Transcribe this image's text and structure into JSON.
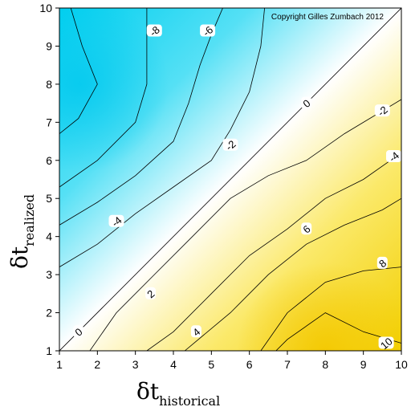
{
  "chart_data": {
    "type": "contour",
    "copyright": "Copyright Gilles Zumbach 2012",
    "x_axis": {
      "symbol": "δt",
      "subscript": "historical",
      "range": [
        1,
        10
      ],
      "ticks": [
        "1",
        "2",
        "3",
        "4",
        "5",
        "6",
        "7",
        "8",
        "9",
        "10"
      ]
    },
    "y_axis": {
      "symbol": "δt",
      "subscript": "realized",
      "range": [
        1,
        10
      ],
      "ticks": [
        "1",
        "2",
        "3",
        "4",
        "5",
        "6",
        "7",
        "8",
        "9",
        "10"
      ]
    },
    "colors": {
      "low": "#00d0f0",
      "mid": "#ffffff",
      "high": "#f5d800"
    },
    "contours": [
      {
        "label": "-8",
        "points": [
          [
            1,
            6.7
          ],
          [
            1.5,
            7.1
          ],
          [
            2,
            8
          ],
          [
            1.6,
            9
          ],
          [
            1.3,
            10
          ]
        ]
      },
      {
        "label": "-6",
        "points": [
          [
            1,
            5.3
          ],
          [
            2,
            6
          ],
          [
            3,
            7
          ],
          [
            3.3,
            8
          ],
          [
            3.3,
            9
          ],
          [
            3.3,
            10
          ]
        ]
      },
      {
        "label": "-4",
        "points": [
          [
            1,
            4.3
          ],
          [
            2,
            4.9
          ],
          [
            3,
            5.6
          ],
          [
            4,
            6.5
          ],
          [
            4.4,
            7.5
          ],
          [
            4.7,
            8.5
          ],
          [
            5,
            9.3
          ],
          [
            5.3,
            10
          ]
        ]
      },
      {
        "label": "-2",
        "points": [
          [
            1,
            3.2
          ],
          [
            2,
            3.8
          ],
          [
            3,
            4.6
          ],
          [
            4,
            5.3
          ],
          [
            5,
            6
          ],
          [
            5.5,
            6.8
          ],
          [
            6,
            7.8
          ],
          [
            6.3,
            9
          ],
          [
            6.4,
            10
          ]
        ]
      },
      {
        "label": "0",
        "points": [
          [
            1,
            1
          ],
          [
            10,
            10
          ]
        ]
      },
      {
        "label": "2",
        "points": [
          [
            1.8,
            1
          ],
          [
            2.5,
            2
          ],
          [
            3.5,
            3
          ],
          [
            4.5,
            4
          ],
          [
            5.5,
            5
          ],
          [
            6.5,
            5.6
          ],
          [
            7.5,
            6
          ],
          [
            8.5,
            6.7
          ],
          [
            10,
            7.6
          ]
        ]
      },
      {
        "label": "4",
        "points": [
          [
            3.3,
            1
          ],
          [
            4,
            1.5
          ],
          [
            5,
            2.5
          ],
          [
            6,
            3.5
          ],
          [
            7,
            4.2
          ],
          [
            8,
            5
          ],
          [
            9,
            5.5
          ],
          [
            10,
            6.2
          ]
        ]
      },
      {
        "label": "6",
        "points": [
          [
            4.3,
            1
          ],
          [
            5.5,
            2
          ],
          [
            6.5,
            3
          ],
          [
            7.5,
            3.8
          ],
          [
            8.5,
            4.3
          ],
          [
            9.5,
            4.7
          ],
          [
            10,
            5
          ]
        ]
      },
      {
        "label": "8",
        "points": [
          [
            6.3,
            1
          ],
          [
            7,
            2
          ],
          [
            8,
            2.8
          ],
          [
            9,
            3.1
          ],
          [
            10,
            3.2
          ]
        ]
      },
      {
        "label": "10",
        "points": [
          [
            6.7,
            1
          ],
          [
            7,
            1.3
          ],
          [
            8,
            2
          ],
          [
            9,
            1.5
          ],
          [
            10,
            1.2
          ]
        ]
      }
    ],
    "label_positions": [
      {
        "label": "-8",
        "x": 3.5,
        "y": 9.4
      },
      {
        "label": "-6",
        "x": 4.9,
        "y": 9.4
      },
      {
        "label": "-4",
        "x": 2.5,
        "y": 4.4
      },
      {
        "label": "-2",
        "x": 5.5,
        "y": 6.4
      },
      {
        "label": "0",
        "x": 1.5,
        "y": 1.5
      },
      {
        "label": "0",
        "x": 7.5,
        "y": 7.5
      },
      {
        "label": "2",
        "x": 3.4,
        "y": 2.5
      },
      {
        "label": "-2",
        "x": 9.5,
        "y": 7.3
      },
      {
        "label": "4",
        "x": 4.6,
        "y": 1.5
      },
      {
        "label": "-4",
        "x": 9.8,
        "y": 6.1
      },
      {
        "label": "6",
        "x": 7.5,
        "y": 4.2
      },
      {
        "label": "8",
        "x": 9.5,
        "y": 3.3
      },
      {
        "label": "10",
        "x": 9.6,
        "y": 1.2
      }
    ]
  }
}
